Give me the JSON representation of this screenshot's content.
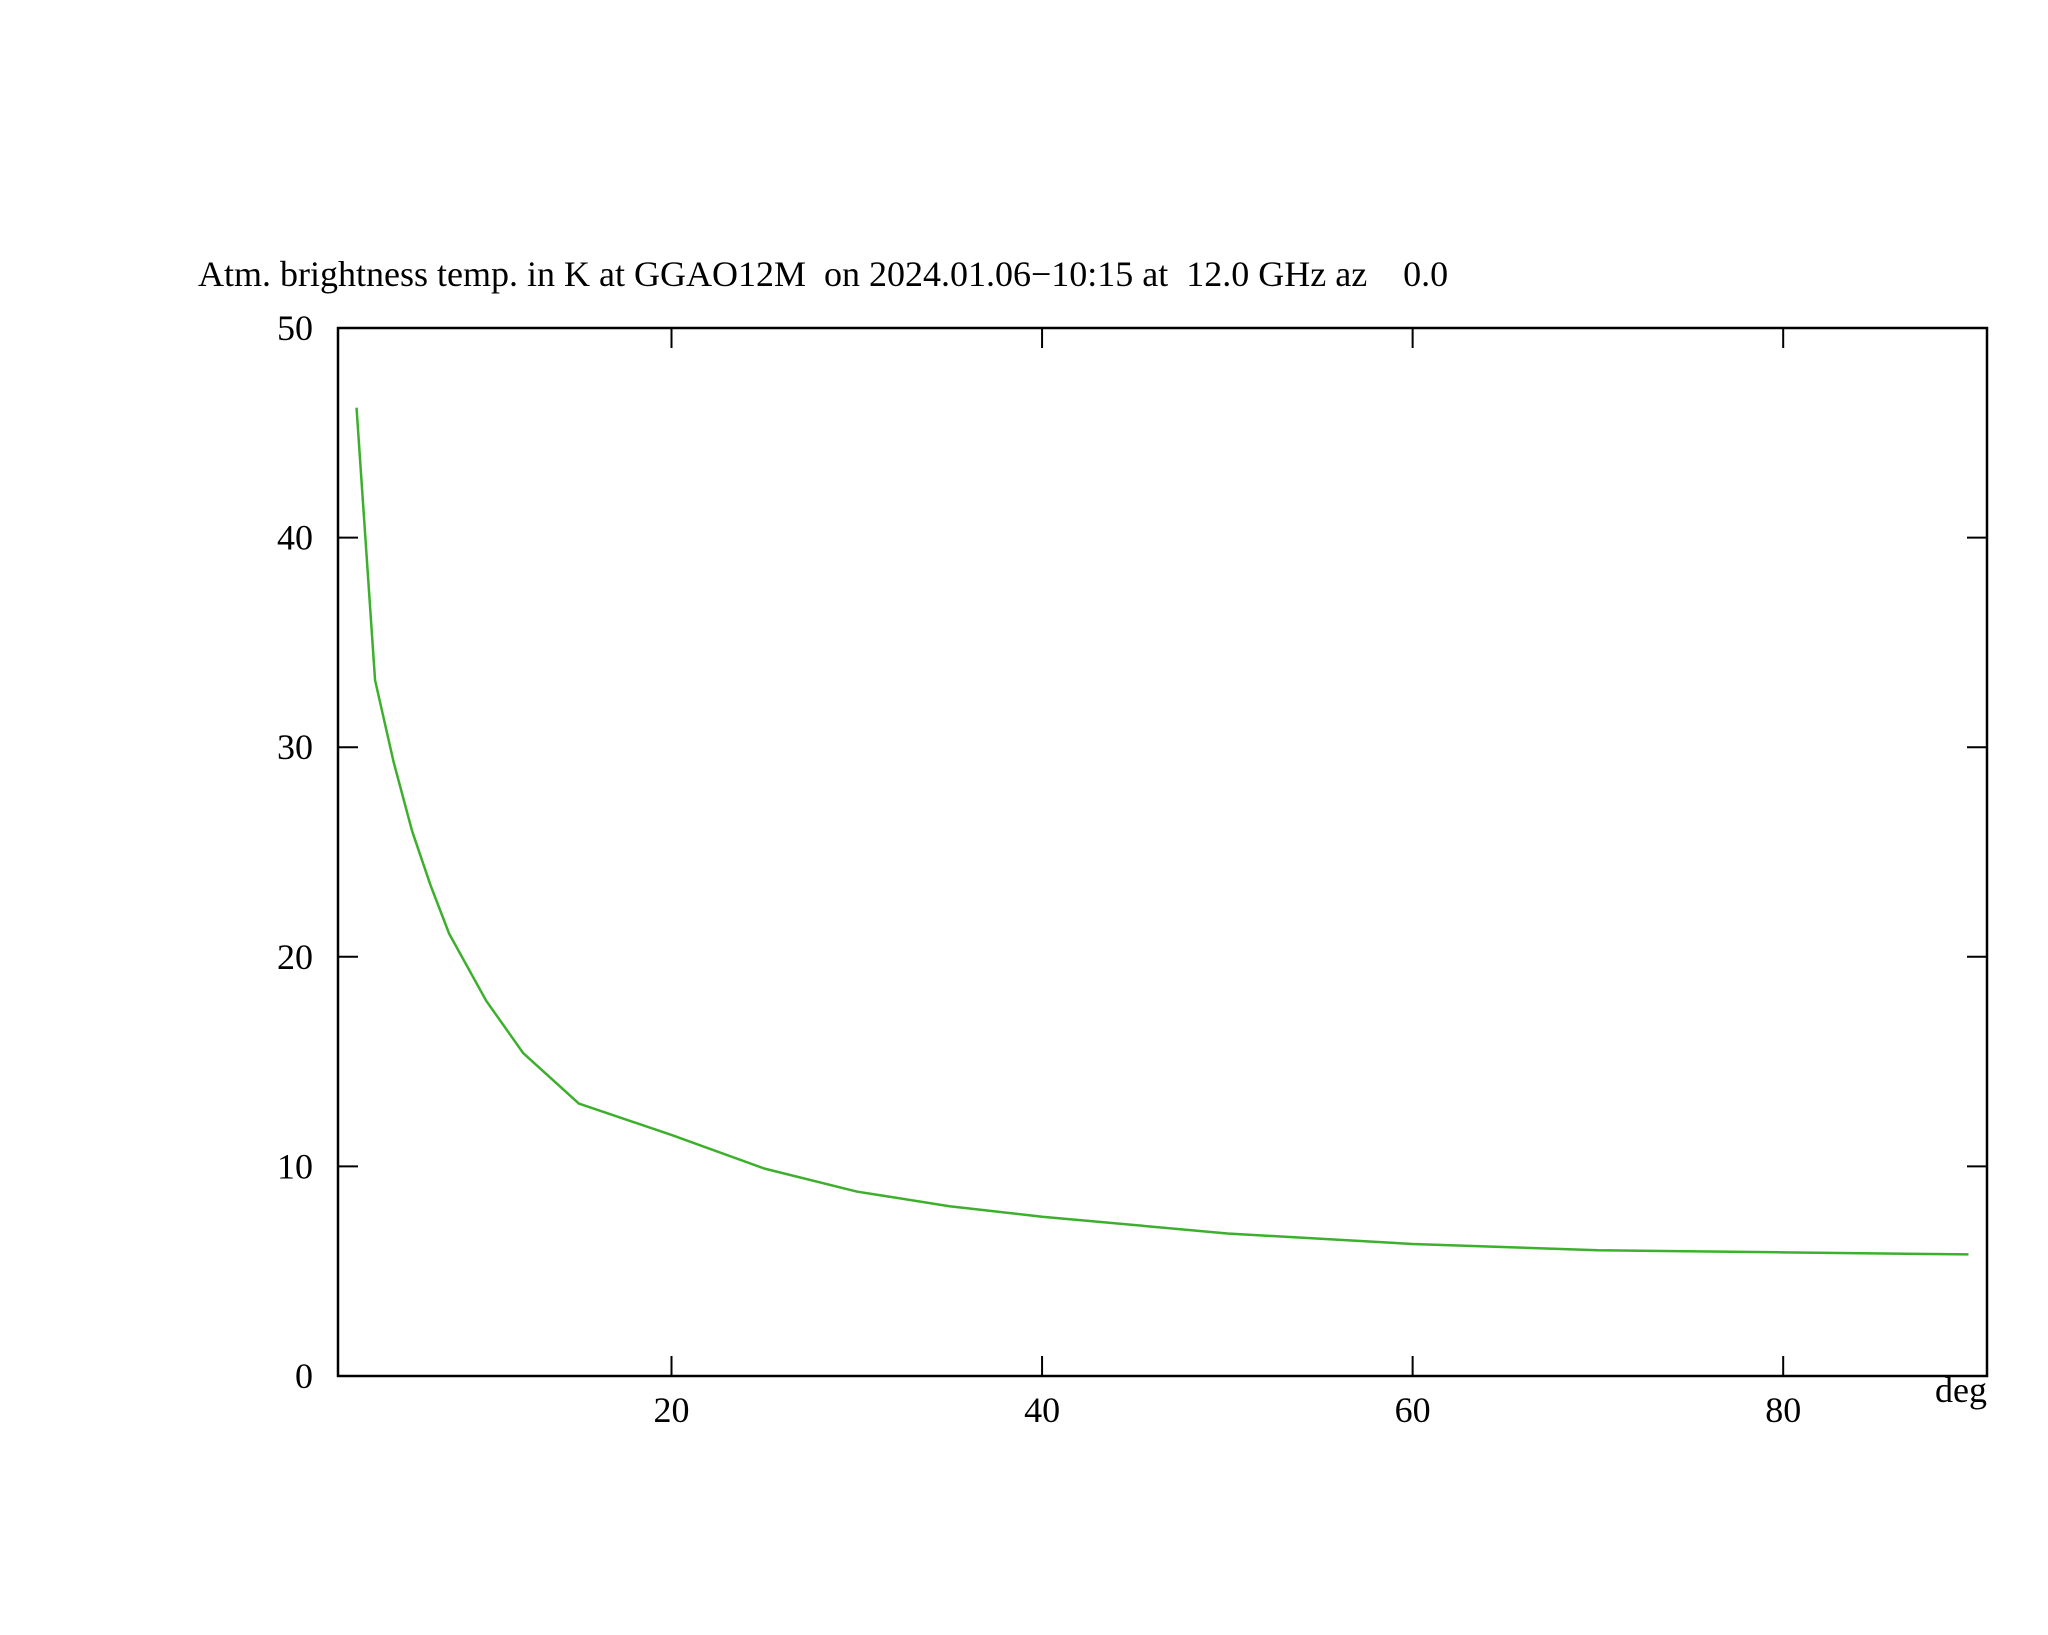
{
  "chart_data": {
    "type": "line",
    "title": "Atm. brightness temp. in K at GGAO12M  on 2024.01.06−10:15 at  12.0 GHz az    0.0",
    "x_label": "deg",
    "x": [
      3,
      4,
      5,
      6,
      7,
      8,
      10,
      12,
      15,
      20,
      25,
      30,
      35,
      40,
      50,
      60,
      70,
      80,
      90
    ],
    "series": [
      {
        "color": "#3cb02c",
        "values": [
          46.2,
          33.2,
          29.3,
          26,
          23.4,
          21.1,
          17.9,
          15.4,
          13.0,
          11.5,
          9.9,
          8.8,
          8.1,
          7.6,
          6.8,
          6.3,
          6.0,
          5.9,
          5.8
        ]
      }
    ],
    "xlim": [
      2,
      91
    ],
    "xticks": [
      20,
      40,
      60,
      80
    ],
    "ylim": [
      0,
      50
    ],
    "yticks": [
      0,
      10,
      20,
      30,
      40,
      50
    ]
  }
}
